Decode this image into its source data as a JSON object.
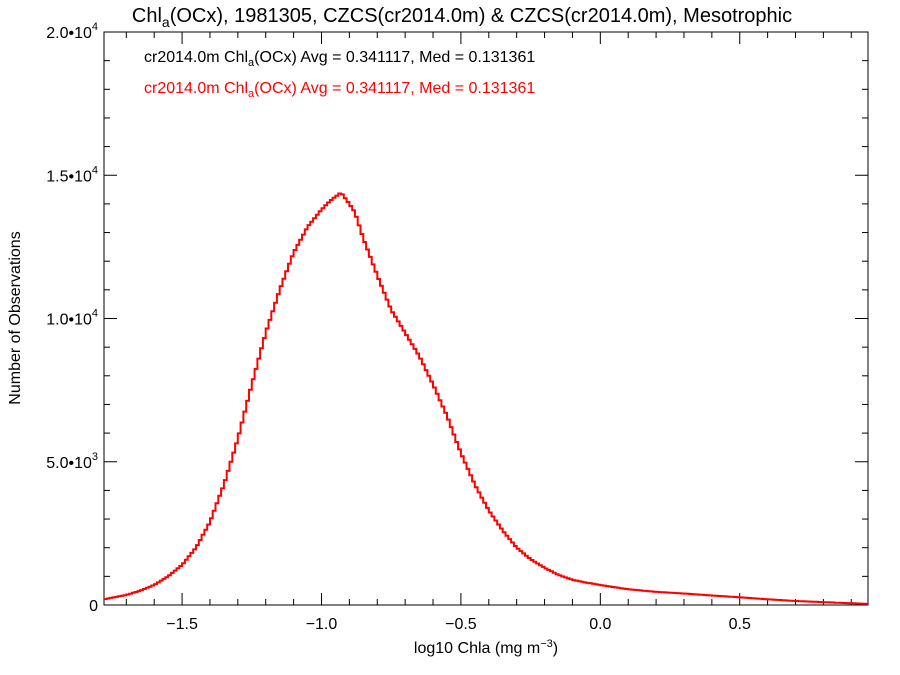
{
  "chart_data": {
    "type": "line",
    "title_parts": {
      "pre": "Chl",
      "sub": "a",
      "post": "(OCx), 1981305, CZCS(cr2014.0m) & CZCS(cr2014.0m), Mesotrophic"
    },
    "xlabel_parts": {
      "pre": "log10 Chla (mg m",
      "sup": "−3",
      "post": ")"
    },
    "ylabel": "Number of Observations",
    "xlim": [
      -1.78,
      0.96
    ],
    "ylim": [
      0,
      20000
    ],
    "x_ticks": [
      {
        "value": -1.5,
        "label": "−1.5"
      },
      {
        "value": -1.0,
        "label": "−1.0"
      },
      {
        "value": -0.5,
        "label": "−0.5"
      },
      {
        "value": 0.0,
        "label": "0.0"
      },
      {
        "value": 0.5,
        "label": "0.5"
      }
    ],
    "y_ticks": [
      {
        "value": 0,
        "mant": "0",
        "exp": ""
      },
      {
        "value": 5000,
        "mant": "5.0•10",
        "exp": "3"
      },
      {
        "value": 10000,
        "mant": "1.0•10",
        "exp": "4"
      },
      {
        "value": 15000,
        "mant": "1.5•10",
        "exp": "4"
      },
      {
        "value": 20000,
        "mant": "2.0•10",
        "exp": "4"
      }
    ],
    "legend": [
      {
        "pre": "cr2014.0m Chl",
        "sub": "a",
        "post": "(OCx) Avg = 0.341117, Med = 0.131361",
        "color": "#000000"
      },
      {
        "pre": "cr2014.0m Chl",
        "sub": "a",
        "post": "(OCx) Avg = 0.341117, Med = 0.131361",
        "color": "#ff0000"
      }
    ],
    "series": [
      {
        "color": "#ff0000",
        "x": [
          -1.78,
          -1.7,
          -1.65,
          -1.6,
          -1.55,
          -1.5,
          -1.45,
          -1.4,
          -1.35,
          -1.3,
          -1.25,
          -1.2,
          -1.15,
          -1.1,
          -1.05,
          -1.0,
          -0.97,
          -0.95,
          -0.93,
          -0.9,
          -0.88,
          -0.85,
          -0.8,
          -0.75,
          -0.7,
          -0.65,
          -0.6,
          -0.55,
          -0.5,
          -0.45,
          -0.4,
          -0.35,
          -0.3,
          -0.25,
          -0.2,
          -0.15,
          -0.1,
          -0.05,
          0.0,
          0.05,
          0.1,
          0.2,
          0.3,
          0.4,
          0.5,
          0.6,
          0.7,
          0.8,
          0.9,
          0.96
        ],
        "y": [
          200,
          350,
          500,
          700,
          1000,
          1400,
          2000,
          2900,
          4200,
          5800,
          7700,
          9500,
          11000,
          12300,
          13200,
          13800,
          14100,
          14250,
          14400,
          14000,
          13700,
          12800,
          11500,
          10300,
          9500,
          8700,
          7700,
          6600,
          5300,
          4200,
          3300,
          2600,
          2000,
          1600,
          1300,
          1050,
          880,
          780,
          700,
          620,
          550,
          460,
          400,
          330,
          270,
          200,
          140,
          100,
          60,
          40
        ]
      }
    ]
  }
}
